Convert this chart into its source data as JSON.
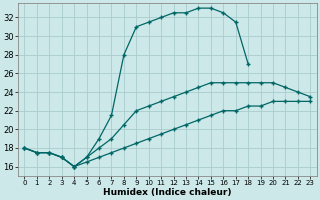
{
  "xlabel": "Humidex (Indice chaleur)",
  "background_color": "#cce8e8",
  "grid_color": "#aacccc",
  "line_color": "#006666",
  "xlim": [
    -0.5,
    23.5
  ],
  "ylim": [
    15,
    33.5
  ],
  "yticks": [
    16,
    18,
    20,
    22,
    24,
    26,
    28,
    30,
    32
  ],
  "xticks": [
    0,
    1,
    2,
    3,
    4,
    5,
    6,
    7,
    8,
    9,
    10,
    11,
    12,
    13,
    14,
    15,
    16,
    17,
    18,
    19,
    20,
    21,
    22,
    23
  ],
  "series": [
    {
      "x": [
        0,
        1,
        2,
        3,
        4,
        5,
        6,
        7,
        8,
        9,
        10,
        11,
        12,
        13,
        14,
        15,
        16,
        17,
        18,
        19,
        20,
        21,
        22,
        23
      ],
      "y": [
        18.0,
        17.5,
        17.5,
        17.0,
        16.0,
        16.5,
        17.0,
        17.5,
        18.0,
        18.5,
        19.0,
        19.5,
        20.0,
        20.5,
        21.0,
        21.5,
        22.0,
        22.0,
        22.5,
        22.5,
        23.0,
        23.0,
        23.0,
        23.0
      ],
      "style": "-",
      "marker": "+",
      "markersize": 3.5,
      "linewidth": 0.9
    },
    {
      "x": [
        0,
        1,
        2,
        3,
        4,
        5,
        6,
        7,
        8,
        9,
        10,
        11,
        12,
        13,
        14,
        15,
        16,
        17,
        18,
        19,
        20,
        21,
        22,
        23
      ],
      "y": [
        18.0,
        17.5,
        17.5,
        17.0,
        16.0,
        17.0,
        18.0,
        19.0,
        20.5,
        22.0,
        22.5,
        23.0,
        23.5,
        24.0,
        24.5,
        25.0,
        25.0,
        25.0,
        25.0,
        25.0,
        25.0,
        24.5,
        24.0,
        23.5
      ],
      "style": "-",
      "marker": "+",
      "markersize": 3.5,
      "linewidth": 0.9
    },
    {
      "x": [
        0,
        1,
        2,
        3,
        4,
        5,
        6,
        7,
        8,
        9,
        10,
        11,
        12,
        13,
        14,
        15,
        16,
        17,
        18,
        19,
        20,
        21,
        22,
        23
      ],
      "y": [
        18.0,
        17.5,
        17.5,
        17.0,
        16.0,
        17.0,
        19.0,
        21.5,
        28.0,
        31.0,
        31.5,
        32.0,
        32.5,
        32.5,
        33.0,
        33.0,
        32.5,
        31.5,
        27.0,
        null,
        null,
        null,
        null,
        null
      ],
      "style": "-",
      "marker": "+",
      "markersize": 3.5,
      "linewidth": 0.9
    }
  ]
}
